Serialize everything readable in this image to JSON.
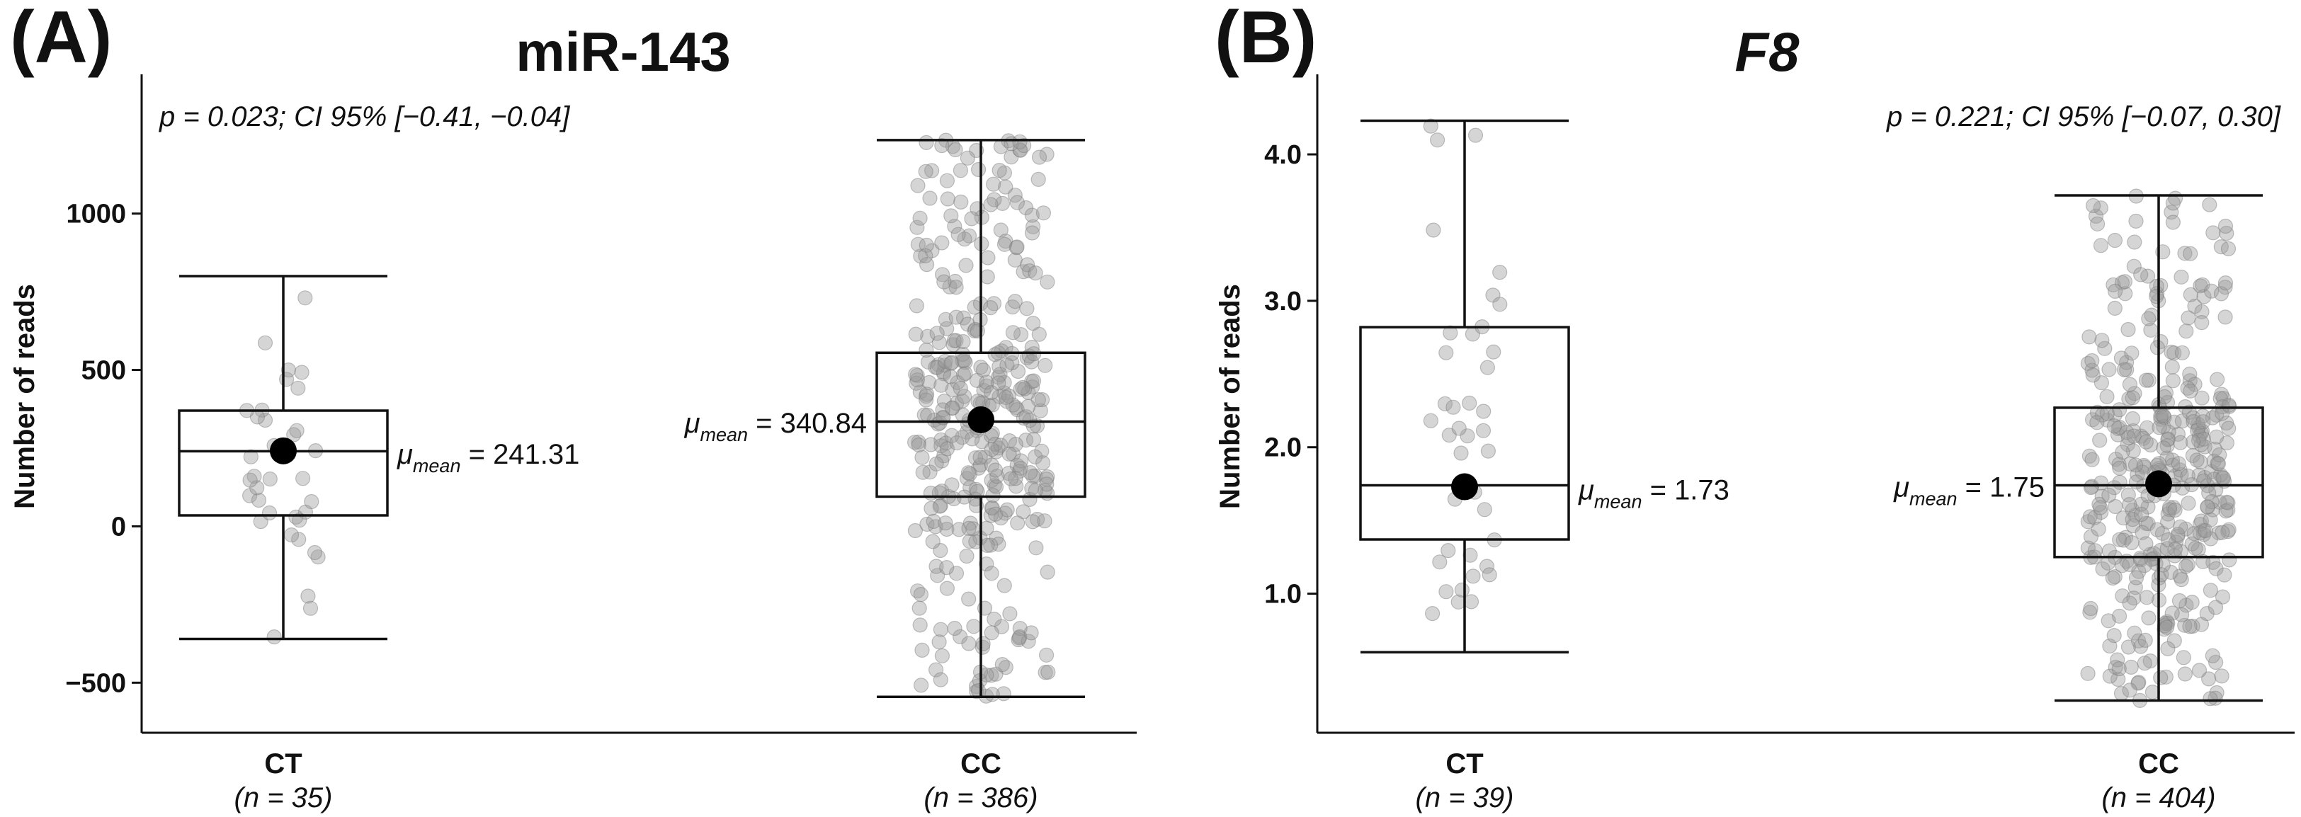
{
  "chart_data": [
    {
      "type": "box",
      "panel_label": "(A)",
      "title": "miR-143",
      "title_italic": false,
      "annotation": "p = 0.023; CI 95% [−0.41, −0.04]",
      "ylabel": "Number of reads",
      "xlabel": "",
      "ylim": [
        -660,
        1400
      ],
      "yticks": [
        -500,
        0,
        500,
        1000
      ],
      "ytick_labels": [
        "−500",
        "0",
        "500",
        "1000"
      ],
      "groups": [
        {
          "name": "CT",
          "n_label": "(n = 35)",
          "n": 35,
          "whisker_low": -360,
          "q1": 35,
          "median": 240,
          "q3": 370,
          "whisker_high": 800,
          "mean": 241.31,
          "mean_label": "241.31",
          "label_side": "right"
        },
        {
          "name": "CC",
          "n_label": "(n = 386)",
          "n": 386,
          "whisker_low": -545,
          "q1": 95,
          "median": 335,
          "q3": 555,
          "whisker_high": 1235,
          "mean": 340.84,
          "mean_label": "340.84",
          "label_side": "left"
        }
      ]
    },
    {
      "type": "box",
      "panel_label": "(B)",
      "title": "F8",
      "title_italic": true,
      "annotation": "p = 0.221; CI 95% [−0.07, 0.30]",
      "ylabel": "Number of reads",
      "xlabel": "",
      "ylim": [
        0.05,
        4.45
      ],
      "yticks": [
        1.0,
        2.0,
        3.0,
        4.0
      ],
      "ytick_labels": [
        "1.0",
        "2.0",
        "3.0",
        "4.0"
      ],
      "groups": [
        {
          "name": "CT",
          "n_label": "(n = 39)",
          "n": 39,
          "whisker_low": 0.6,
          "q1": 1.37,
          "median": 1.74,
          "q3": 2.82,
          "whisker_high": 4.23,
          "mean": 1.73,
          "mean_label": "1.73",
          "label_side": "right"
        },
        {
          "name": "CC",
          "n_label": "(n = 404)",
          "n": 404,
          "whisker_low": 0.27,
          "q1": 1.25,
          "median": 1.74,
          "q3": 2.27,
          "whisker_high": 3.72,
          "mean": 1.75,
          "mean_label": "1.75",
          "label_side": "left"
        }
      ]
    }
  ],
  "mean_symbol": "μ",
  "mean_subscript": "mean"
}
